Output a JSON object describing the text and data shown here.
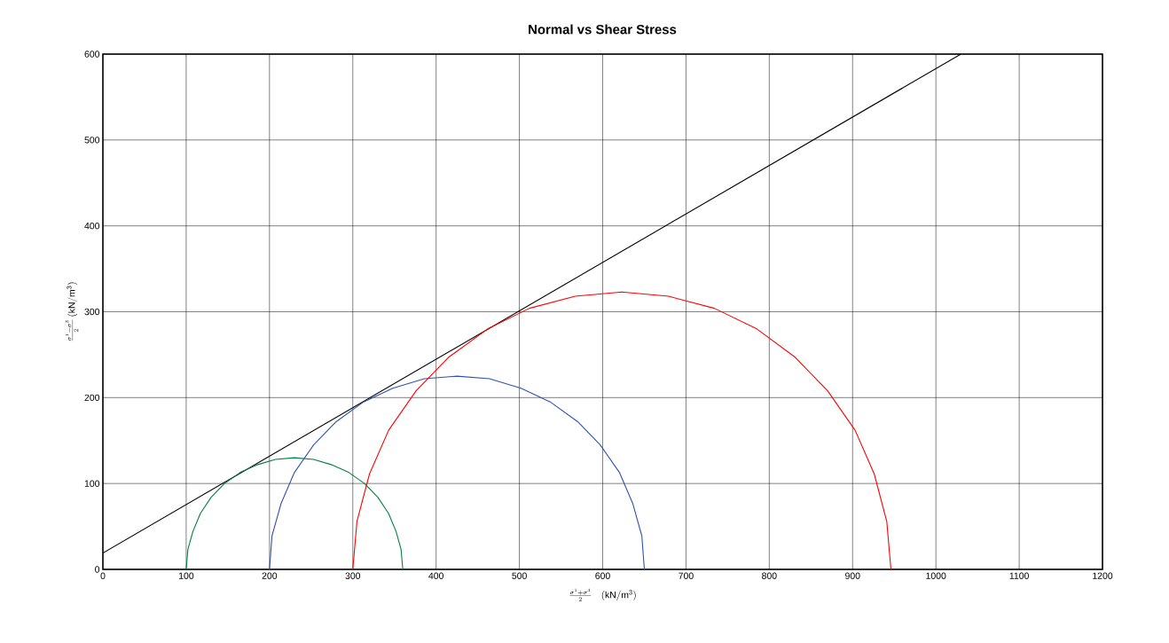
{
  "chart_data": {
    "type": "line",
    "title": "Normal vs Shear Stress",
    "xlabel": "\\frac{\\sigma^1 + \\sigma^3}{2}\\quad(\\mathrm{kN/m^3})",
    "ylabel": "\\frac{\\sigma^1 - \\sigma^3}{2}\\,(\\mathrm{kN/m^3})",
    "xlim": [
      0,
      1200
    ],
    "ylim": [
      0,
      600
    ],
    "xticks": [
      0,
      100,
      200,
      300,
      400,
      500,
      600,
      700,
      800,
      900,
      1000,
      1100,
      1200
    ],
    "yticks": [
      0,
      100,
      200,
      300,
      400,
      500,
      600
    ],
    "grid": true,
    "marker": "none",
    "line_style": "solid",
    "series": [
      {
        "color": "#000000",
        "x": [
          0,
          1030
        ],
        "values": [
          19,
          600
        ]
      },
      {
        "color": "#008040",
        "x": [
          100,
          102,
          108,
          117,
          130,
          146,
          165,
          186,
          207,
          230,
          253,
          274,
          295,
          314,
          330,
          343,
          352,
          358,
          360
        ],
        "values": [
          0,
          23,
          44,
          65,
          84,
          100,
          113,
          122,
          128,
          130,
          128,
          122,
          113,
          100,
          84,
          65,
          44,
          23,
          0
        ]
      },
      {
        "color": "#3050b0",
        "x": [
          200,
          203,
          214,
          230,
          253,
          280,
          313,
          348,
          386,
          425,
          464,
          502,
          537,
          570,
          597,
          620,
          636,
          647,
          650
        ],
        "values": [
          0,
          39,
          77,
          113,
          145,
          172,
          195,
          211,
          222,
          225,
          222,
          211,
          195,
          172,
          145,
          113,
          77,
          39,
          0
        ]
      },
      {
        "color": "#ff0000",
        "x": [
          300,
          305,
          320,
          343,
          376,
          415,
          462,
          512,
          567,
          623,
          679,
          734,
          785,
          831,
          870,
          903,
          926,
          941,
          946
        ],
        "values": [
          0,
          56,
          111,
          162,
          208,
          247,
          280,
          304,
          318,
          323,
          318,
          304,
          280,
          247,
          208,
          162,
          111,
          56,
          0
        ]
      }
    ]
  }
}
